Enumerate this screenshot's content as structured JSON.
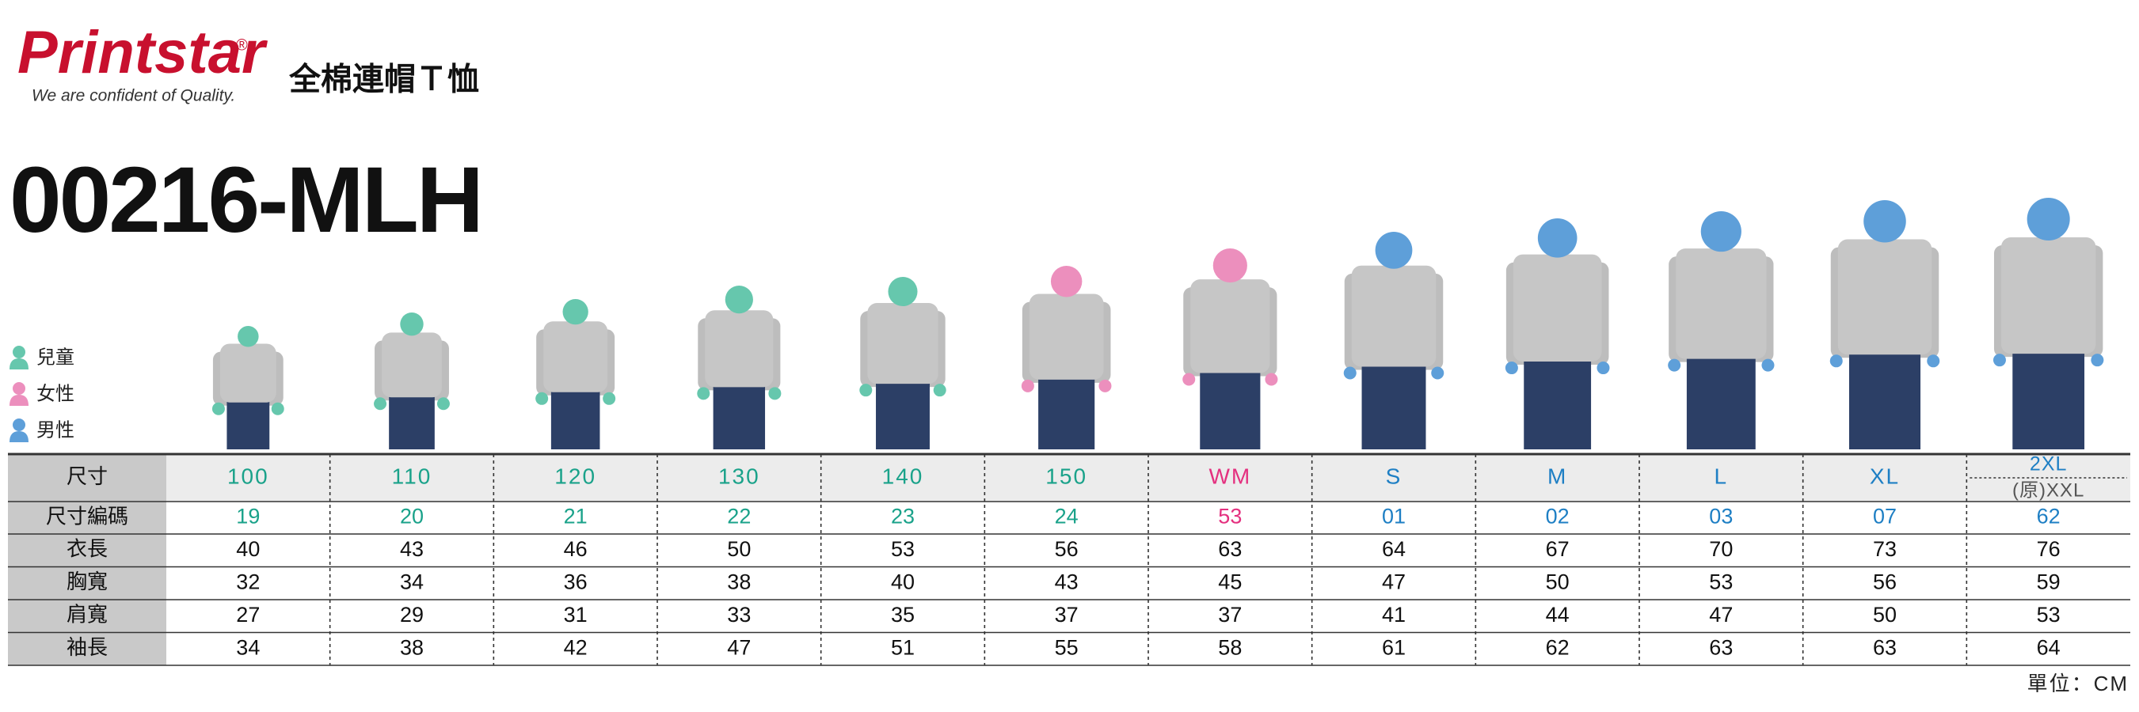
{
  "logo": {
    "name": "Printstar",
    "mark": "®",
    "tagline": "We are confident of Quality."
  },
  "title": "全棉連帽Ｔ恤",
  "code": "00216-MLH",
  "legend": [
    {
      "label": "兒童",
      "color": "#66c7ad"
    },
    {
      "label": "女性",
      "color": "#ec8fbd"
    },
    {
      "label": "男性",
      "color": "#5e9fd9"
    }
  ],
  "table": {
    "size_label": "尺寸",
    "code_label": "尺寸編碼",
    "columns": [
      {
        "size": "100",
        "code": "19",
        "color": "#1aa28a",
        "figure": "#66c7ad"
      },
      {
        "size": "110",
        "code": "20",
        "color": "#1aa28a",
        "figure": "#66c7ad"
      },
      {
        "size": "120",
        "code": "21",
        "color": "#1aa28a",
        "figure": "#66c7ad"
      },
      {
        "size": "130",
        "code": "22",
        "color": "#1aa28a",
        "figure": "#66c7ad"
      },
      {
        "size": "140",
        "code": "23",
        "color": "#1aa28a",
        "figure": "#66c7ad"
      },
      {
        "size": "150",
        "code": "24",
        "color": "#1aa28a",
        "figure": "#ec8fbd"
      },
      {
        "size": "WM",
        "code": "53",
        "color": "#e4307f",
        "figure": "#ec8fbd"
      },
      {
        "size": "S",
        "code": "01",
        "color": "#1e7fc4",
        "figure": "#5e9fd9"
      },
      {
        "size": "M",
        "code": "02",
        "color": "#1e7fc4",
        "figure": "#5e9fd9"
      },
      {
        "size": "L",
        "code": "03",
        "color": "#1e7fc4",
        "figure": "#5e9fd9"
      },
      {
        "size": "XL",
        "code": "07",
        "color": "#1e7fc4",
        "figure": "#5e9fd9"
      },
      {
        "size": "2XL",
        "size_alt": "(原)XXL",
        "code": "62",
        "color": "#1e7fc4",
        "figure": "#5e9fd9"
      }
    ],
    "rows": [
      {
        "label": "衣長",
        "values": [
          40,
          43,
          46,
          50,
          53,
          56,
          63,
          64,
          67,
          70,
          73,
          76
        ]
      },
      {
        "label": "胸寬",
        "values": [
          32,
          34,
          36,
          38,
          40,
          43,
          45,
          47,
          50,
          53,
          56,
          59
        ]
      },
      {
        "label": "肩寬",
        "values": [
          27,
          29,
          31,
          33,
          35,
          37,
          37,
          41,
          44,
          47,
          50,
          53
        ]
      },
      {
        "label": "袖長",
        "values": [
          34,
          38,
          42,
          47,
          51,
          55,
          58,
          61,
          62,
          63,
          63,
          64
        ]
      }
    ]
  },
  "unit": "單位：CM"
}
